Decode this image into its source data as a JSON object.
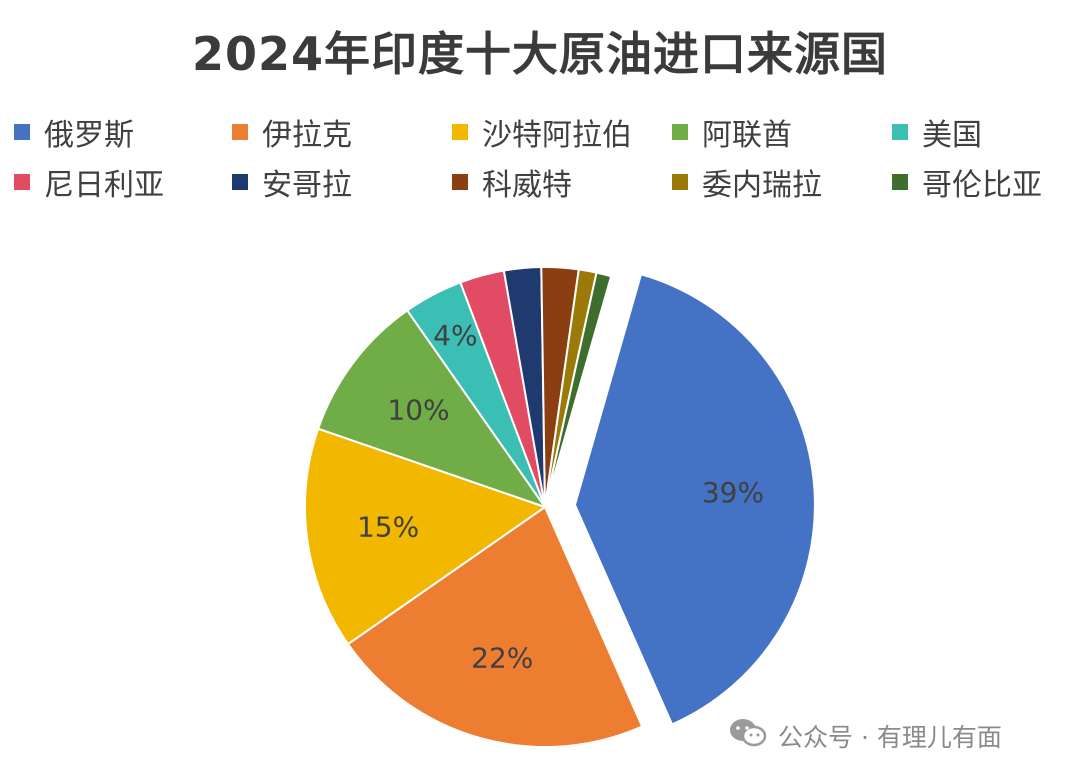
{
  "chart_data": {
    "type": "pie",
    "title": "2024年印度十大原油进口来源国",
    "categories": [
      "俄罗斯",
      "伊拉克",
      "沙特阿拉伯",
      "阿联酋",
      "美国",
      "尼日利亚",
      "安哥拉",
      "科威特",
      "委内瑞拉",
      "哥伦比亚"
    ],
    "values": [
      39,
      22,
      15,
      10,
      4,
      3,
      2.5,
      2.5,
      1.2,
      1
    ],
    "data_labels": [
      "39%",
      "22%",
      "15%",
      "10%",
      "4%",
      "",
      "",
      "",
      "",
      ""
    ],
    "colors": [
      "#4472C4",
      "#ED7D31",
      "#F2B800",
      "#70AD47",
      "#3BBFB4",
      "#E14B64",
      "#1F3A6E",
      "#8B3E12",
      "#9C7A0A",
      "#3E6E2D"
    ],
    "exploded": [
      "俄罗斯"
    ],
    "legend_position": "top"
  },
  "watermark": {
    "icon": "wechat-icon",
    "text": "公众号 · 有理儿有面"
  }
}
